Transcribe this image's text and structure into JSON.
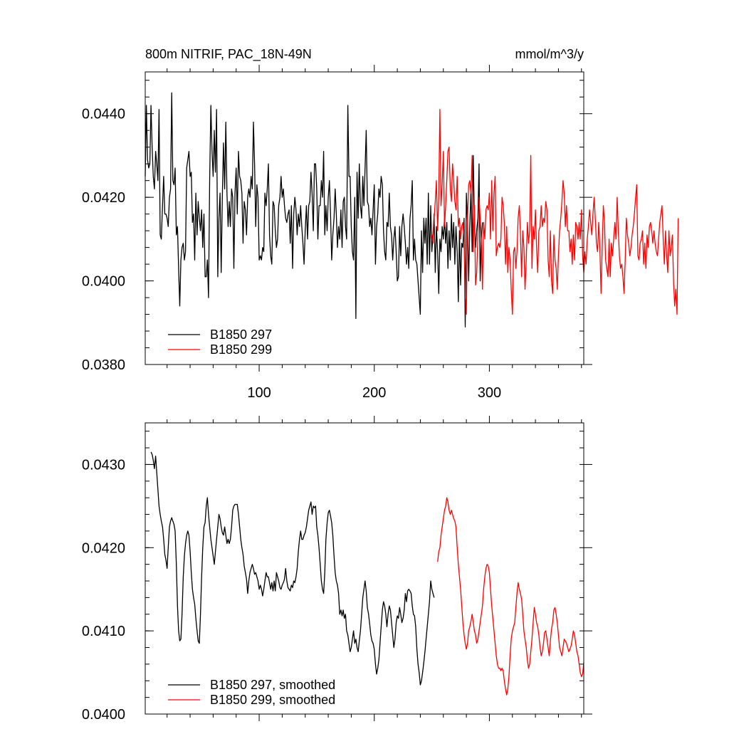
{
  "colors": {
    "series_297": "#000000",
    "series_299": "#ff0000",
    "axis": "#000000"
  },
  "chart_data": [
    {
      "type": "line",
      "title_left": "800m NITRIF, PAC_18N-49N",
      "title_right": "mmol/m^3/y",
      "xlim": [
        1,
        382
      ],
      "ylim": [
        0.038,
        0.045
      ],
      "xticks": [
        100,
        200,
        300
      ],
      "xtick_labels": [
        "100",
        "200",
        "300"
      ],
      "yticks": [
        0.038,
        0.04,
        0.042,
        0.044
      ],
      "ytick_labels": [
        "0.0380",
        "0.0400",
        "0.0420",
        "0.0440"
      ],
      "legend_position": "bottom-left",
      "series": [
        {
          "name": "B1850 297",
          "color": "#000000",
          "x_start": 1,
          "x_step": 1,
          "values": [
            0.0425,
            0.0442,
            0.0429,
            0.0427,
            0.0428,
            0.0442,
            0.0432,
            0.0425,
            0.0422,
            0.0431,
            0.0428,
            0.0424,
            0.0441,
            0.0411,
            0.041,
            0.0418,
            0.0425,
            0.0416,
            0.0416,
            0.0415,
            0.0413,
            0.042,
            0.0422,
            0.0445,
            0.0424,
            0.0423,
            0.0427,
            0.0411,
            0.0413,
            0.0403,
            0.0394,
            0.0405,
            0.0408,
            0.0409,
            0.0405,
            0.0407,
            0.0427,
            0.0429,
            0.0431,
            0.0425,
            0.0426,
            0.0414,
            0.0416,
            0.0405,
            0.0421,
            0.0411,
            0.0419,
            0.0415,
            0.0412,
            0.0417,
            0.0408,
            0.0416,
            0.0401,
            0.0401,
            0.0405,
            0.0396,
            0.0424,
            0.0442,
            0.0431,
            0.0425,
            0.0436,
            0.0426,
            0.0441,
            0.0401,
            0.0415,
            0.0421,
            0.0402,
            0.042,
            0.0433,
            0.0422,
            0.0438,
            0.0421,
            0.0413,
            0.0419,
            0.0413,
            0.0422,
            0.042,
            0.0403,
            0.0421,
            0.0427,
            0.0416,
            0.0431,
            0.0425,
            0.0424,
            0.0421,
            0.0409,
            0.0419,
            0.0417,
            0.0411,
            0.042,
            0.0422,
            0.042,
            0.0425,
            0.0422,
            0.0438,
            0.0428,
            0.0413,
            0.0423,
            0.042,
            0.0405,
            0.0406,
            0.0405,
            0.0408,
            0.0407,
            0.0421,
            0.0418,
            0.0422,
            0.0428,
            0.0411,
            0.0406,
            0.0404,
            0.0419,
            0.0418,
            0.0412,
            0.0408,
            0.041,
            0.0418,
            0.042,
            0.0425,
            0.042,
            0.0422,
            0.0418,
            0.0415,
            0.0414,
            0.0416,
            0.0417,
            0.0409,
            0.0418,
            0.0403,
            0.0416,
            0.042,
            0.0417,
            0.0411,
            0.0416,
            0.0413,
            0.0418,
            0.0413,
            0.0409,
            0.0404,
            0.0412,
            0.0418,
            0.041,
            0.0418,
            0.0419,
            0.0426,
            0.0421,
            0.0412,
            0.0428,
            0.0428,
            0.0422,
            0.041,
            0.0418,
            0.0418,
            0.0424,
            0.042,
            0.0431,
            0.0411,
            0.0418,
            0.0412,
            0.042,
            0.0424,
            0.0416,
            0.0405,
            0.0411,
            0.0415,
            0.0422,
            0.0416,
            0.0408,
            0.0413,
            0.041,
            0.0417,
            0.0408,
            0.0419,
            0.042,
            0.0413,
            0.041,
            0.0442,
            0.0425,
            0.0425,
            0.0413,
            0.0407,
            0.0405,
            0.042,
            0.0391,
            0.0426,
            0.0415,
            0.0428,
            0.0418,
            0.0415,
            0.0425,
            0.0418,
            0.0427,
            0.0436,
            0.0419,
            0.0418,
            0.0413,
            0.0415,
            0.0411,
            0.0417,
            0.0423,
            0.0404,
            0.0413,
            0.0416,
            0.0422,
            0.042,
            0.0425,
            0.0423,
            0.0412,
            0.0407,
            0.0405,
            0.0414,
            0.0413,
            0.0421,
            0.0413,
            0.0411,
            0.0405,
            0.041,
            0.0413,
            0.0407,
            0.04,
            0.0401,
            0.0413,
            0.0406,
            0.0413,
            0.0416,
            0.0413,
            0.0409,
            0.0404,
            0.0408,
            0.0403,
            0.0415,
            0.0418,
            0.0424,
            0.0405,
            0.041,
            0.0405,
            0.0404,
            0.04,
            0.0396,
            0.0392,
            0.0412,
            0.0402,
            0.0415,
            0.0409,
            0.0415,
            0.0404,
            0.0421,
            0.0404,
            0.0418,
            0.0407,
            0.0411,
            0.0416,
            0.0402,
            0.0413,
            0.0407,
            0.0397,
            0.041,
            0.0407,
            0.0413,
            0.041,
            0.0415,
            0.0409,
            0.0414,
            0.0403,
            0.0412,
            0.0405,
            0.0416,
            0.0408,
            0.0414,
            0.0404,
            0.0413,
            0.0407,
            0.0395,
            0.0412,
            0.0399,
            0.0409,
            0.0408,
            0.0415,
            0.0389,
            0.0421,
            0.0414,
            0.04,
            0.0413,
            0.0422,
            0.0407,
            0.043,
            0.0414,
            0.0408,
            0.0412,
            0.0415,
            0.0428,
            0.04,
            0.041,
            0.0414
          ]
        },
        {
          "name": "B1850 299",
          "color": "#ff0000",
          "x_start": 250,
          "x_step": 1,
          "values": [
            0.0411,
            0.0409,
            0.0415,
            0.0419,
            0.0424,
            0.0412,
            0.042,
            0.0441,
            0.0418,
            0.0423,
            0.0431,
            0.0413,
            0.0418,
            0.0424,
            0.0431,
            0.0432,
            0.0422,
            0.0419,
            0.0428,
            0.0424,
            0.0419,
            0.0417,
            0.0425,
            0.0413,
            0.0415,
            0.041,
            0.0413,
            0.0414,
            0.041,
            0.0397,
            0.0392,
            0.0415,
            0.0423,
            0.0424,
            0.0421,
            0.043,
            0.0407,
            0.0418,
            0.0399,
            0.0402,
            0.0411,
            0.042,
            0.0415,
            0.041,
            0.0398,
            0.0414,
            0.041,
            0.0417,
            0.0418,
            0.0417,
            0.0421,
            0.041,
            0.0424,
            0.0412,
            0.0421,
            0.0425,
            0.0406,
            0.0408,
            0.0409,
            0.0408,
            0.041,
            0.042,
            0.0418,
            0.0414,
            0.0404,
            0.0413,
            0.0402,
            0.0408,
            0.0405,
            0.0398,
            0.0392,
            0.0407,
            0.0408,
            0.0403,
            0.0407,
            0.0415,
            0.0418,
            0.0411,
            0.0401,
            0.0412,
            0.0408,
            0.0398,
            0.0405,
            0.0414,
            0.0409,
            0.0412,
            0.043,
            0.0403,
            0.0413,
            0.041,
            0.0417,
            0.0408,
            0.0402,
            0.0412,
            0.0413,
            0.0418,
            0.0413,
            0.0415,
            0.0414,
            0.0419,
            0.0417,
            0.0405,
            0.0401,
            0.0412,
            0.04,
            0.0397,
            0.0411,
            0.0405,
            0.0403,
            0.0398,
            0.0406,
            0.0412,
            0.0415,
            0.0419,
            0.0424,
            0.0421,
            0.0413,
            0.0418,
            0.0412,
            0.0412,
            0.0407,
            0.041,
            0.0404,
            0.0411,
            0.0405,
            0.0414,
            0.0413,
            0.041,
            0.0414,
            0.041,
            0.0417,
            0.0406,
            0.0402,
            0.0407,
            0.0404,
            0.041,
            0.0413,
            0.0417,
            0.0414,
            0.0411,
            0.0416,
            0.042,
            0.0415,
            0.0409,
            0.0407,
            0.0414,
            0.0408,
            0.0397,
            0.0408,
            0.0418,
            0.0414,
            0.0405,
            0.0403,
            0.0401,
            0.041,
            0.0401,
            0.0409,
            0.0406,
            0.041,
            0.0414,
            0.041,
            0.042,
            0.0412,
            0.0406,
            0.0403,
            0.0404,
            0.0401,
            0.0397,
            0.0405,
            0.0415,
            0.0411,
            0.0409,
            0.0406,
            0.0408,
            0.0411,
            0.0413,
            0.0416,
            0.042,
            0.0423,
            0.0406,
            0.0405,
            0.0409,
            0.041,
            0.0412,
            0.0404,
            0.0409,
            0.0403,
            0.0411,
            0.0408,
            0.0413,
            0.0414,
            0.0412,
            0.0409,
            0.0412,
            0.0409,
            0.0407,
            0.0406,
            0.041,
            0.0414,
            0.0416,
            0.0418,
            0.041,
            0.0404,
            0.0412,
            0.0406,
            0.0402,
            0.0412,
            0.0406,
            0.0408,
            0.0411,
            0.04,
            0.0394,
            0.0398,
            0.0392,
            0.0415
          ]
        }
      ]
    },
    {
      "type": "line",
      "xlim": [
        1,
        382
      ],
      "ylim": [
        0.04,
        0.0435
      ],
      "xticks": [
        100,
        200,
        300
      ],
      "yticks": [
        0.04,
        0.041,
        0.042,
        0.043
      ],
      "ytick_labels": [
        "0.0400",
        "0.0410",
        "0.0420",
        "0.0430"
      ],
      "legend_position": "bottom-left",
      "series": [
        {
          "name": "B1850 297, smoothed",
          "color": "#000000",
          "x_start": 6,
          "x_step": 1,
          "values": [
            0.04315,
            0.04312,
            0.04305,
            0.04295,
            0.0431,
            0.0429,
            0.0427,
            0.0425,
            0.0424,
            0.04232,
            0.04225,
            0.0421,
            0.04192,
            0.04185,
            0.04175,
            0.042,
            0.04225,
            0.04232,
            0.04236,
            0.04232,
            0.04228,
            0.0422,
            0.0418,
            0.0413,
            0.041,
            0.04088,
            0.0409,
            0.0412,
            0.04165,
            0.0419,
            0.04205,
            0.04215,
            0.0422,
            0.04215,
            0.04195,
            0.0417,
            0.0415,
            0.0414,
            0.04132,
            0.04115,
            0.041,
            0.04088,
            0.04085,
            0.0412,
            0.04165,
            0.042,
            0.04225,
            0.0423,
            0.0425,
            0.0426,
            0.0424,
            0.04225,
            0.0421,
            0.042,
            0.0419,
            0.0418,
            0.04195,
            0.0421,
            0.04225,
            0.0424,
            0.04235,
            0.04225,
            0.04218,
            0.04215,
            0.04225,
            0.04215,
            0.04205,
            0.0421,
            0.04205,
            0.0421,
            0.04225,
            0.04245,
            0.0425,
            0.04252,
            0.04252,
            0.04252,
            0.0424,
            0.04225,
            0.0421,
            0.042,
            0.04192,
            0.04178,
            0.0417,
            0.04162,
            0.04145,
            0.0416,
            0.0417,
            0.04175,
            0.0418,
            0.04175,
            0.04168,
            0.0417,
            0.04165,
            0.0416,
            0.0415,
            0.04155,
            0.0415,
            0.04142,
            0.0415,
            0.0416,
            0.0417,
            0.04165,
            0.04165,
            0.04158,
            0.0415,
            0.04158,
            0.04148,
            0.0416,
            0.04148,
            0.0417,
            0.04165,
            0.0416,
            0.04152,
            0.0415,
            0.04155,
            0.04158,
            0.04162,
            0.04175,
            0.0416,
            0.04152,
            0.0415,
            0.04148,
            0.04155,
            0.04152,
            0.0416,
            0.04158,
            0.04165,
            0.04175,
            0.04195,
            0.0421,
            0.0422,
            0.0421,
            0.0421,
            0.04215,
            0.04218,
            0.04225,
            0.04235,
            0.04245,
            0.0425,
            0.04255,
            0.0424,
            0.0425,
            0.04248,
            0.0425,
            0.04225,
            0.04215,
            0.042,
            0.0418,
            0.0416,
            0.0415,
            0.04145,
            0.0417,
            0.0421,
            0.0423,
            0.04242,
            0.04245,
            0.04238,
            0.0423,
            0.04215,
            0.0419,
            0.0417,
            0.0416,
            0.04155,
            0.04145,
            0.0412,
            0.04125,
            0.04118,
            0.04125,
            0.04115,
            0.0412,
            0.041,
            0.04095,
            0.04085,
            0.04075,
            0.0408,
            0.0409,
            0.041,
            0.04085,
            0.0409,
            0.0408,
            0.04075,
            0.04088,
            0.041,
            0.0412,
            0.0414,
            0.0415,
            0.0416,
            0.04148,
            0.04128,
            0.0412,
            0.04108,
            0.04095,
            0.04088,
            0.04085,
            0.04078,
            0.0406,
            0.04048,
            0.04055,
            0.04065,
            0.04085,
            0.04105,
            0.04125,
            0.04135,
            0.0413,
            0.0412,
            0.04105,
            0.0412,
            0.0413,
            0.04125,
            0.0411,
            0.04095,
            0.0408,
            0.0409,
            0.0411,
            0.04118,
            0.04115,
            0.04128,
            0.0412,
            0.0411,
            0.04115,
            0.04125,
            0.04145,
            0.04135,
            0.04148,
            0.0415,
            0.04148,
            0.04145,
            0.0413,
            0.0412,
            0.04118,
            0.04105,
            0.04078,
            0.0406,
            0.0405,
            0.04035,
            0.0404,
            0.0405,
            0.04062,
            0.04075,
            0.0409,
            0.04105,
            0.0412,
            0.04135,
            0.0416,
            0.0415,
            0.04145,
            0.0414
          ]
        },
        {
          "name": "B1850 299, smoothed",
          "color": "#ff0000",
          "x_start": 255,
          "x_step": 1,
          "values": [
            0.04183,
            0.04195,
            0.042,
            0.04215,
            0.04225,
            0.04235,
            0.04245,
            0.0425,
            0.0426,
            0.04255,
            0.04245,
            0.0424,
            0.04245,
            0.0424,
            0.04235,
            0.04232,
            0.04225,
            0.042,
            0.0418,
            0.04165,
            0.0415,
            0.0413,
            0.0411,
            0.04095,
            0.04085,
            0.04078,
            0.04085,
            0.041,
            0.04105,
            0.04112,
            0.0412,
            0.0411,
            0.041,
            0.04095,
            0.04085,
            0.0409,
            0.041,
            0.0411,
            0.0412,
            0.0413,
            0.0415,
            0.04165,
            0.04175,
            0.0418,
            0.04178,
            0.0417,
            0.0415,
            0.0413,
            0.04115,
            0.041,
            0.04085,
            0.0407,
            0.0406,
            0.04055,
            0.04055,
            0.04052,
            0.04055,
            0.04052,
            0.0404,
            0.0403,
            0.04023,
            0.0403,
            0.04045,
            0.0407,
            0.0409,
            0.041,
            0.04105,
            0.0411,
            0.04128,
            0.04145,
            0.04158,
            0.0415,
            0.04145,
            0.04138,
            0.0412,
            0.041,
            0.0409,
            0.0408,
            0.04065,
            0.04055,
            0.0406,
            0.04075,
            0.0409,
            0.0411,
            0.04128,
            0.0412,
            0.0411,
            0.04105,
            0.04095,
            0.0408,
            0.0407,
            0.04075,
            0.04085,
            0.04098,
            0.041,
            0.0409,
            0.0408,
            0.0407,
            0.04088,
            0.04102,
            0.0411,
            0.04125,
            0.04128,
            0.0412,
            0.0411,
            0.04095,
            0.0408,
            0.04075,
            0.0407,
            0.0408,
            0.0409,
            0.04088,
            0.04085,
            0.0408,
            0.04075,
            0.04078,
            0.04082,
            0.0409,
            0.041,
            0.04095,
            0.04085,
            0.04075,
            0.0407,
            0.0406,
            0.0405,
            0.04045,
            0.04048,
            0.04062
          ]
        }
      ]
    }
  ],
  "legend_top": [
    {
      "label": "B1850 297",
      "color": "#000000"
    },
    {
      "label": "B1850 299",
      "color": "#ff0000"
    }
  ],
  "legend_bottom": [
    {
      "label": "B1850 297, smoothed",
      "color": "#000000"
    },
    {
      "label": "B1850 299, smoothed",
      "color": "#ff0000"
    }
  ]
}
